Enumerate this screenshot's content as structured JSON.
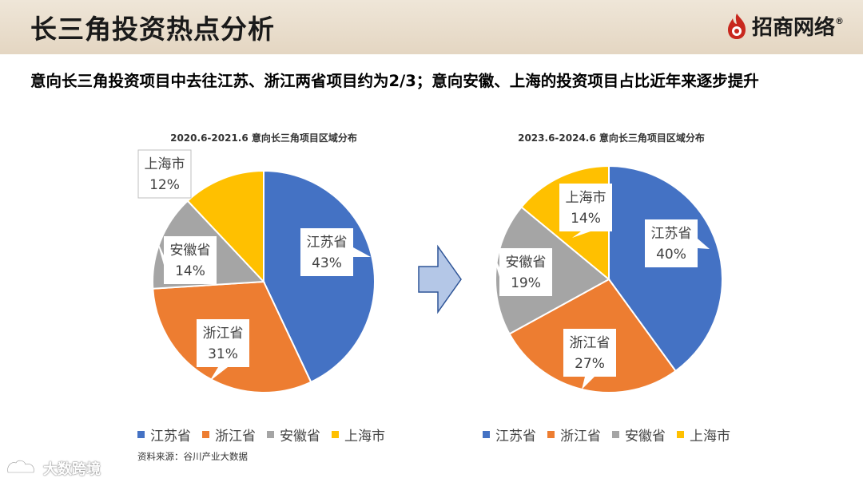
{
  "header": {
    "title": "长三角投资热点分析",
    "brand": "招商网络",
    "brand_reg": "®"
  },
  "subtitle": "意向长三角投资项目中去往江苏、浙江两省项目约为2/3；意向安徽、上海的投资项目占比近年来逐步提升",
  "chart_data": [
    {
      "type": "pie",
      "title": "2020.6-2021.6 意向长三角项目区域分布",
      "categories": [
        "江苏省",
        "浙江省",
        "安徽省",
        "上海市"
      ],
      "values": [
        43,
        31,
        14,
        12
      ],
      "value_labels": [
        "43%",
        "31%",
        "14%",
        "12%"
      ],
      "colors": [
        "#4472c4",
        "#ed7d31",
        "#a5a5a5",
        "#ffc000"
      ],
      "legend": "bottom"
    },
    {
      "type": "pie",
      "title": "2023.6-2024.6 意向长三角项目区域分布",
      "categories": [
        "江苏省",
        "浙江省",
        "安徽省",
        "上海市"
      ],
      "values": [
        40,
        27,
        19,
        14
      ],
      "value_labels": [
        "40%",
        "27%",
        "19%",
        "14%"
      ],
      "colors": [
        "#4472c4",
        "#ed7d31",
        "#a5a5a5",
        "#ffc000"
      ],
      "legend": "bottom"
    }
  ],
  "arrow_icon": "right-arrow-icon",
  "source": "资料来源：谷川产业大数据",
  "watermark": "大数跨境"
}
